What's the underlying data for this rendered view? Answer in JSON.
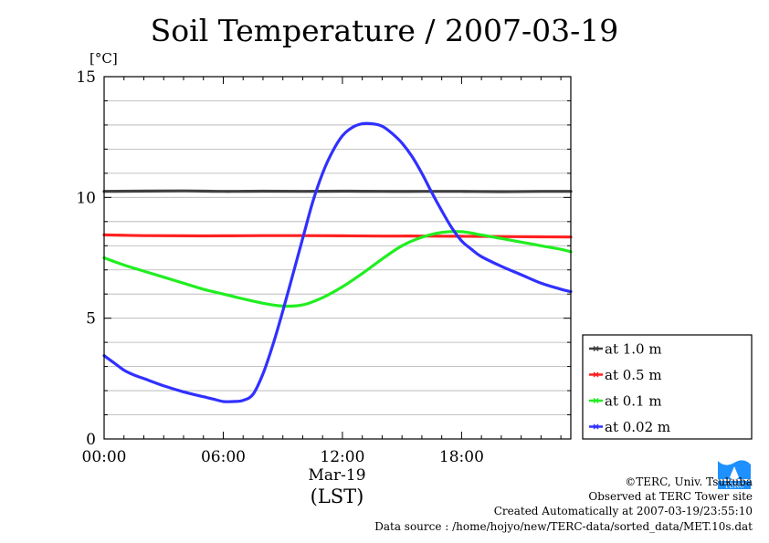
{
  "chart_data": {
    "type": "line",
    "title": "Soil Temperature / 2007-03-19",
    "ylabel": "[°C]",
    "xlabel": "(LST)",
    "date_label": "Mar-19",
    "xlim": [
      0,
      23.5
    ],
    "ylim": [
      0,
      15
    ],
    "x_ticks": [
      {
        "value": 0,
        "label": "00:00"
      },
      {
        "value": 6,
        "label": "06:00"
      },
      {
        "value": 12,
        "label": "12:00"
      },
      {
        "value": 18,
        "label": "18:00"
      }
    ],
    "y_ticks": [
      {
        "value": 0,
        "label": "0"
      },
      {
        "value": 5,
        "label": "5"
      },
      {
        "value": 10,
        "label": "10"
      },
      {
        "value": 15,
        "label": "15"
      }
    ],
    "grid": true,
    "legend_position": "outside-right-bottom",
    "series": [
      {
        "name": "at 1.0 m",
        "color": "#404040",
        "x": [
          0,
          4,
          6,
          8,
          10,
          12,
          14,
          16,
          18,
          20,
          22,
          23.5
        ],
        "values": [
          10.25,
          10.27,
          10.25,
          10.26,
          10.25,
          10.26,
          10.25,
          10.25,
          10.25,
          10.24,
          10.25,
          10.25
        ]
      },
      {
        "name": "at 0.5 m",
        "color": "#ff2020",
        "x": [
          0,
          2,
          4,
          6,
          8,
          10,
          12,
          14,
          16,
          18,
          20,
          22,
          23.5
        ],
        "values": [
          8.45,
          8.42,
          8.41,
          8.41,
          8.42,
          8.42,
          8.41,
          8.4,
          8.4,
          8.39,
          8.38,
          8.37,
          8.36
        ]
      },
      {
        "name": "at 0.1 m",
        "color": "#20ee20",
        "x": [
          0,
          1,
          2,
          3,
          4,
          5,
          6,
          7,
          8,
          9,
          10,
          11,
          12,
          13,
          14,
          15,
          16,
          17,
          18,
          19,
          20,
          21,
          22,
          23,
          23.5
        ],
        "values": [
          7.5,
          7.2,
          6.95,
          6.7,
          6.45,
          6.2,
          6.0,
          5.8,
          5.62,
          5.5,
          5.55,
          5.85,
          6.3,
          6.85,
          7.45,
          8.0,
          8.35,
          8.55,
          8.58,
          8.45,
          8.3,
          8.15,
          8.0,
          7.85,
          7.75
        ]
      },
      {
        "name": "at 0.02 m",
        "color": "#3030ff",
        "x": [
          0,
          0.5,
          1,
          1.5,
          2,
          3,
          4,
          5,
          5.5,
          6,
          6.5,
          7,
          7.5,
          8,
          8.5,
          9,
          9.5,
          10,
          10.5,
          11,
          11.5,
          12,
          12.5,
          13,
          13.5,
          14,
          14.5,
          15,
          15.5,
          16,
          16.5,
          17,
          17.5,
          18,
          18.5,
          19,
          20,
          21,
          22,
          23,
          23.5
        ],
        "values": [
          3.45,
          3.15,
          2.85,
          2.65,
          2.5,
          2.2,
          1.95,
          1.75,
          1.65,
          1.55,
          1.55,
          1.6,
          1.85,
          2.7,
          3.9,
          5.3,
          6.8,
          8.3,
          9.8,
          11.0,
          11.9,
          12.55,
          12.9,
          13.05,
          13.05,
          12.95,
          12.65,
          12.25,
          11.7,
          11.0,
          10.2,
          9.45,
          8.75,
          8.2,
          7.85,
          7.55,
          7.15,
          6.8,
          6.45,
          6.2,
          6.1
        ]
      }
    ]
  },
  "credits": {
    "copyright": "©TERC, Univ. Tsukuba",
    "site": "Observed at TERC Tower site",
    "created": "Created Automatically at 2007-03-19/23:55:10",
    "source": "Data source : /home/hojyo/new/TERC-data/sorted_data/MET.10s.dat",
    "logo_text": "TERC",
    "logo_color": "#1e90ff"
  }
}
